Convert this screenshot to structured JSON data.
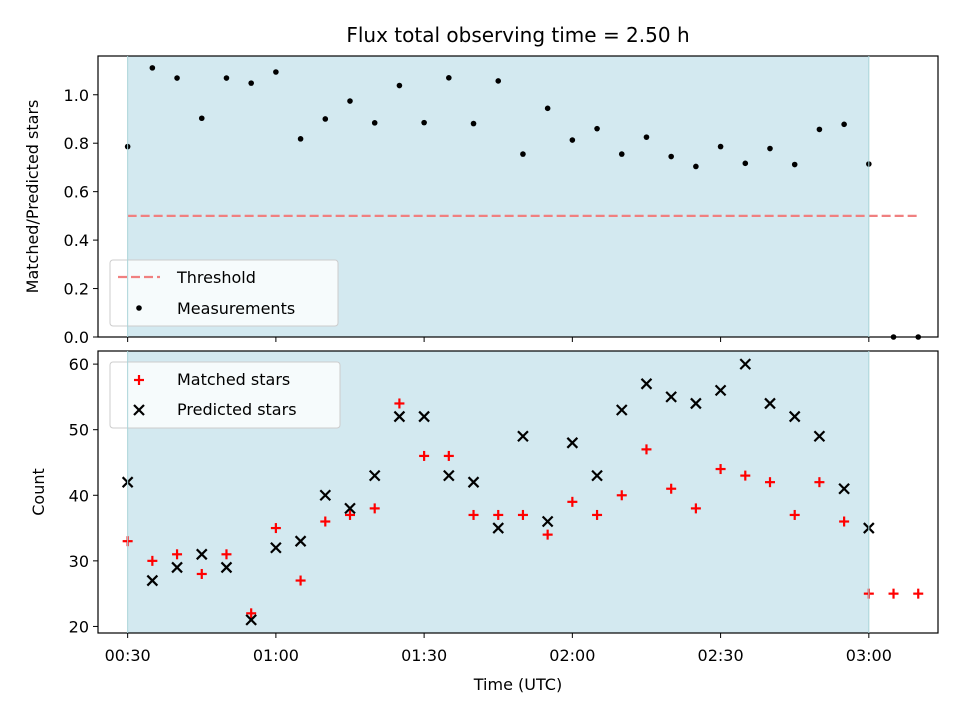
{
  "chart_data": [
    {
      "type": "scatter",
      "title": "Flux total observing time = 2.50 h",
      "xlabel": "",
      "ylabel": "Matched/Predicted stars",
      "ylim": [
        0,
        1.16
      ],
      "yticks": [
        "0.0",
        "0.2",
        "0.4",
        "0.6",
        "0.8",
        "1.0"
      ],
      "shaded_span": [
        "00:30",
        "03:00"
      ],
      "shade_color": "#d3e9f0",
      "legend_position": "lower left",
      "series": [
        {
          "name": "Threshold",
          "kind": "dashed-line",
          "color": "#f08080",
          "x": [
            "00:30",
            "03:10"
          ],
          "values": [
            0.5,
            0.5
          ]
        },
        {
          "name": "Measurements",
          "kind": "dots",
          "color": "#000000",
          "x": [
            "00:30",
            "00:35",
            "00:40",
            "00:45",
            "00:50",
            "00:55",
            "01:00",
            "01:05",
            "01:10",
            "01:15",
            "01:20",
            "01:25",
            "01:30",
            "01:35",
            "01:40",
            "01:45",
            "01:50",
            "01:55",
            "02:00",
            "02:05",
            "02:10",
            "02:15",
            "02:20",
            "02:25",
            "02:30",
            "02:35",
            "02:40",
            "02:45",
            "02:50",
            "02:55",
            "03:00",
            "03:05",
            "03:10"
          ],
          "values": [
            0.786,
            1.111,
            1.069,
            0.903,
            1.069,
            1.048,
            1.094,
            0.818,
            0.9,
            0.974,
            0.884,
            1.038,
            0.885,
            1.07,
            0.881,
            1.057,
            0.755,
            0.944,
            0.813,
            0.86,
            0.755,
            0.825,
            0.745,
            0.704,
            0.786,
            0.717,
            0.778,
            0.712,
            0.857,
            0.878,
            0.714,
            0.0,
            0.0
          ]
        }
      ]
    },
    {
      "type": "scatter",
      "title": "",
      "xlabel": "Time (UTC)",
      "ylabel": "Count",
      "ylim": [
        19,
        62
      ],
      "yticks": [
        "20",
        "30",
        "40",
        "50",
        "60"
      ],
      "xticks": [
        "00:30",
        "01:00",
        "01:30",
        "02:00",
        "02:30",
        "03:00"
      ],
      "shaded_span": [
        "00:30",
        "03:00"
      ],
      "legend_position": "upper left",
      "series": [
        {
          "name": "Matched stars",
          "kind": "plus",
          "color": "#ff0000",
          "x": [
            "00:30",
            "00:35",
            "00:40",
            "00:45",
            "00:50",
            "00:55",
            "01:00",
            "01:05",
            "01:10",
            "01:15",
            "01:20",
            "01:25",
            "01:30",
            "01:35",
            "01:40",
            "01:45",
            "01:50",
            "01:55",
            "02:00",
            "02:05",
            "02:10",
            "02:15",
            "02:20",
            "02:25",
            "02:30",
            "02:35",
            "02:40",
            "02:45",
            "02:50",
            "02:55",
            "03:00",
            "03:05",
            "03:10"
          ],
          "values": [
            33,
            30,
            31,
            28,
            31,
            22,
            35,
            27,
            36,
            37,
            38,
            54,
            46,
            46,
            37,
            37,
            37,
            34,
            39,
            37,
            40,
            47,
            41,
            38,
            44,
            43,
            42,
            37,
            42,
            36,
            25,
            25,
            25
          ]
        },
        {
          "name": "Predicted stars",
          "kind": "cross",
          "color": "#000000",
          "x": [
            "00:30",
            "00:35",
            "00:40",
            "00:45",
            "00:50",
            "00:55",
            "01:00",
            "01:05",
            "01:10",
            "01:15",
            "01:20",
            "01:25",
            "01:30",
            "01:35",
            "01:40",
            "01:45",
            "01:50",
            "01:55",
            "02:00",
            "02:05",
            "02:10",
            "02:15",
            "02:20",
            "02:25",
            "02:30",
            "02:35",
            "02:40",
            "02:45",
            "02:50",
            "02:55",
            "03:00"
          ],
          "values": [
            42,
            27,
            29,
            31,
            29,
            21,
            32,
            33,
            40,
            38,
            43,
            52,
            52,
            43,
            42,
            35,
            49,
            36,
            48,
            43,
            53,
            57,
            55,
            54,
            56,
            60,
            54,
            52,
            49,
            41,
            35
          ]
        }
      ]
    }
  ]
}
